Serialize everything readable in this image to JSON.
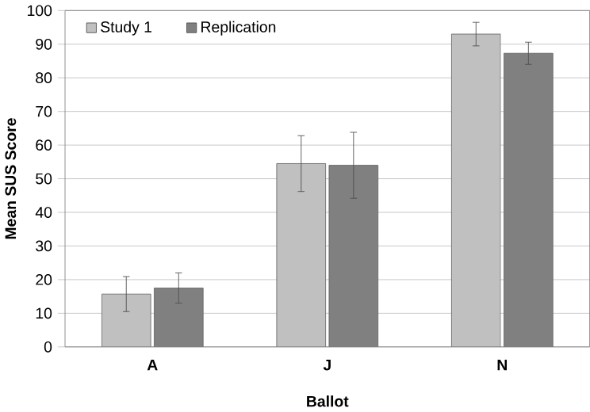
{
  "chart_data": {
    "type": "bar",
    "xlabel": "Ballot",
    "ylabel": "Mean SUS Score",
    "categories": [
      "A",
      "J",
      "N"
    ],
    "series": [
      {
        "name": "Study 1",
        "color": "#c0c0c0",
        "values": [
          15.7,
          54.5,
          93
        ],
        "errors": [
          5.2,
          8.3,
          3.5
        ]
      },
      {
        "name": "Replication",
        "color": "#808080",
        "values": [
          17.5,
          54,
          87.3
        ],
        "errors": [
          4.5,
          9.8,
          3.3
        ]
      }
    ],
    "ylim": [
      0,
      100
    ],
    "yticks": [
      0,
      10,
      20,
      30,
      40,
      50,
      60,
      70,
      80,
      90,
      100
    ],
    "grid": "y",
    "legend": "top left"
  }
}
